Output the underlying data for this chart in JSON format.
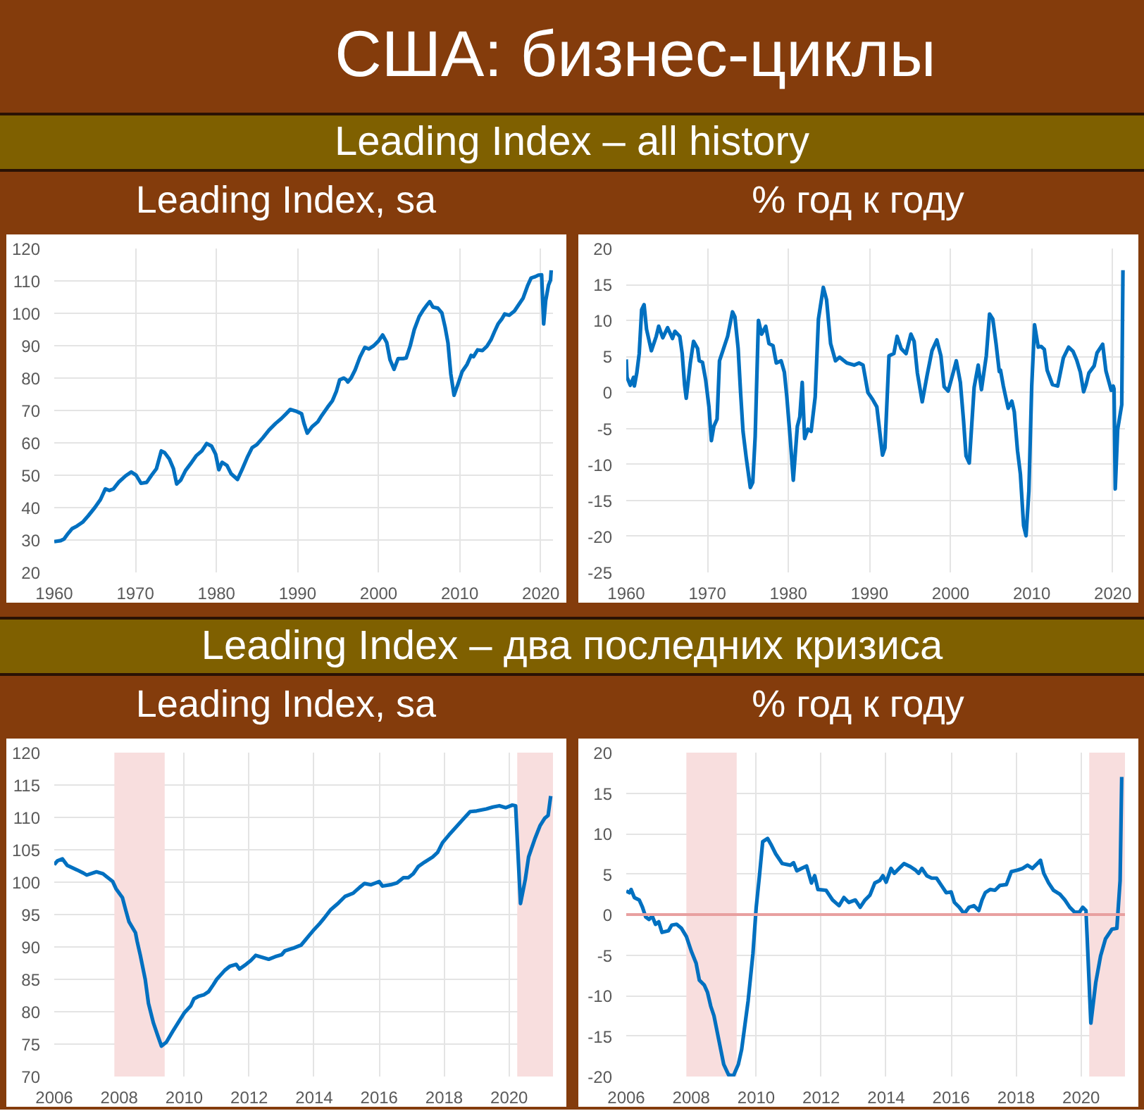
{
  "chart_data": [
    {
      "type": "line",
      "title": "Leading Index, sa",
      "annotations": [
        "США: бизнес-циклы",
        "Leading Index – all history"
      ],
      "x": [
        1960.0,
        1960.8,
        1961.2,
        1961.7,
        1962.2,
        1962.8,
        1963.5,
        1964.2,
        1965.0,
        1965.7,
        1966.3,
        1966.8,
        1967.3,
        1968.0,
        1968.8,
        1969.5,
        1970.1,
        1970.7,
        1971.4,
        1972.0,
        1972.6,
        1973.2,
        1973.6,
        1974.2,
        1974.7,
        1975.1,
        1975.6,
        1976.2,
        1976.8,
        1977.5,
        1978.2,
        1978.8,
        1979.4,
        1979.9,
        1980.3,
        1980.7,
        1981.3,
        1981.8,
        1982.6,
        1983.2,
        1983.8,
        1984.4,
        1985.0,
        1985.7,
        1986.5,
        1987.3,
        1988.0,
        1988.6,
        1989.1,
        1989.8,
        1990.5,
        1990.8,
        1991.2,
        1991.8,
        1992.5,
        1993.0,
        1993.7,
        1994.3,
        1994.8,
        1995.2,
        1995.7,
        1996.0,
        1996.2,
        1996.6,
        1997.1,
        1997.7,
        1998.3,
        1998.8,
        1999.4,
        2000.0,
        2000.5,
        2001.0,
        2001.4,
        2001.9,
        2002.4,
        2003.0,
        2003.4,
        2003.9,
        2004.4,
        2005.0,
        2005.5,
        2006.0,
        2006.3,
        2006.7,
        2007.3,
        2007.8,
        2008.2,
        2008.55,
        2008.9,
        2009.3,
        2009.85,
        2010.3,
        2010.9,
        2011.4,
        2011.7,
        2012.2,
        2012.8,
        2013.35,
        2013.85,
        2014.3,
        2014.75,
        2015.2,
        2015.55,
        2016.1,
        2016.75,
        2017.2,
        2017.8,
        2018.4,
        2018.8,
        2019.3,
        2019.7,
        2020.1,
        2020.35,
        2020.6,
        2020.95,
        2021.2,
        2021.28
      ],
      "series": [
        {
          "color": "#0070c0",
          "values": [
            29.5,
            29.8,
            30.3,
            32.0,
            33.5,
            34.3,
            35.5,
            37.5,
            40.0,
            42.5,
            45.8,
            45.3,
            45.8,
            48.0,
            49.8,
            51.0,
            50.0,
            47.5,
            47.8,
            50.0,
            52.0,
            57.5,
            57.0,
            55.0,
            52.0,
            47.3,
            48.5,
            51.5,
            53.5,
            56.0,
            57.5,
            59.8,
            59.0,
            56.5,
            51.7,
            54.0,
            53.0,
            50.5,
            48.7,
            52.0,
            55.5,
            58.5,
            59.5,
            61.5,
            64.0,
            66.0,
            67.5,
            69.0,
            70.3,
            69.8,
            69.0,
            66.0,
            63.0,
            65.0,
            66.5,
            68.5,
            71.0,
            73.0,
            76.0,
            79.5,
            80.0,
            79.5,
            78.8,
            80.0,
            82.5,
            86.5,
            89.5,
            89.0,
            90.0,
            91.5,
            93.3,
            91.0,
            85.7,
            82.7,
            86.0,
            86.0,
            86.2,
            90.0,
            95.0,
            99.0,
            101.0,
            102.7,
            103.6,
            101.9,
            101.6,
            100.1,
            95.7,
            90.9,
            81.3,
            74.7,
            78.6,
            82.0,
            84.2,
            87.0,
            86.6,
            88.7,
            88.5,
            89.8,
            91.8,
            94.4,
            96.8,
            98.3,
            99.8,
            99.4,
            100.7,
            102.4,
            104.6,
            108.7,
            110.9,
            111.3,
            111.8,
            111.9,
            96.7,
            103.9,
            108.7,
            110.3,
            113.3
          ]
        }
      ],
      "xlim": [
        1960,
        2021.5
      ],
      "xticks": [
        1960,
        1970,
        1980,
        1990,
        2000,
        2010,
        2020
      ],
      "ylim": [
        20,
        120
      ],
      "yticks": [
        20,
        30,
        40,
        50,
        60,
        70,
        80,
        90,
        100,
        110,
        120
      ],
      "grid": true
    },
    {
      "type": "line",
      "title": "% год к году",
      "x": [
        1960.0,
        1960.1,
        1960.5,
        1960.9,
        1961.0,
        1961.3,
        1961.6,
        1961.9,
        1962.2,
        1962.5,
        1963.1,
        1963.7,
        1964.0,
        1964.5,
        1965.1,
        1965.7,
        1966.0,
        1966.6,
        1966.9,
        1967.2,
        1967.4,
        1967.9,
        1968.3,
        1968.8,
        1969.0,
        1969.4,
        1969.8,
        1970.2,
        1970.5,
        1970.8,
        1971.2,
        1971.5,
        1972.0,
        1972.5,
        1973.1,
        1973.4,
        1973.8,
        1974.1,
        1974.4,
        1974.8,
        1975.3,
        1975.6,
        1975.9,
        1976.3,
        1976.7,
        1977.2,
        1977.6,
        1978.1,
        1978.5,
        1979.1,
        1979.5,
        1979.8,
        1980.2,
        1980.6,
        1981.1,
        1981.4,
        1981.7,
        1982.0,
        1982.4,
        1982.8,
        1983.3,
        1983.7,
        1984.3,
        1984.7,
        1985.2,
        1985.8,
        1986.3,
        1987.2,
        1988.1,
        1988.7,
        1989.2,
        1989.8,
        1990.4,
        1990.9,
        1991.6,
        1991.9,
        1992.4,
        1993.0,
        1993.4,
        1993.9,
        1994.5,
        1995.1,
        1995.5,
        1995.9,
        1996.5,
        1997.1,
        1997.7,
        1998.3,
        1998.8,
        1999.2,
        1999.7,
        2000.3,
        2000.7,
        2001.2,
        2001.6,
        2001.9,
        2002.3,
        2002.9,
        2003.4,
        2003.8,
        2004.4,
        2004.8,
        2005.2,
        2005.6,
        2006.0,
        2006.15,
        2006.5,
        2006.9,
        2007.1,
        2007.55,
        2007.85,
        2008.25,
        2008.6,
        2009.0,
        2009.3,
        2009.65,
        2010.0,
        2010.35,
        2010.8,
        2011.15,
        2011.55,
        2011.9,
        2012.55,
        2013.2,
        2013.9,
        2014.55,
        2015.1,
        2015.55,
        2016.0,
        2016.4,
        2016.7,
        2017.05,
        2017.7,
        2018.05,
        2018.75,
        2019.15,
        2019.8,
        2020.05,
        2020.15,
        2020.3,
        2020.6,
        2021.1,
        2021.25
      ],
      "series": [
        {
          "color": "#0070c0",
          "values": [
            4.6,
            2.1,
            1.0,
            2.1,
            0.9,
            2.7,
            5.4,
            11.5,
            12.2,
            8.8,
            5.8,
            7.8,
            9.2,
            7.6,
            9.0,
            7.5,
            8.5,
            7.8,
            5.4,
            1.0,
            -0.8,
            4.1,
            7.1,
            6.1,
            4.4,
            4.2,
            1.7,
            -2.0,
            -6.7,
            -4.7,
            -3.7,
            4.4,
            6.1,
            7.8,
            11.2,
            10.5,
            6.1,
            0.0,
            -5.4,
            -9.1,
            -13.2,
            -12.5,
            -6.1,
            10.0,
            8.1,
            9.2,
            6.8,
            6.5,
            4.1,
            4.4,
            2.8,
            -0.6,
            -6.1,
            -12.2,
            -4.7,
            -3.4,
            1.4,
            -6.4,
            -5.1,
            -5.4,
            -0.6,
            10.2,
            14.6,
            12.9,
            6.8,
            4.4,
            4.9,
            4.1,
            3.8,
            4.1,
            3.8,
            0.0,
            -1.0,
            -2.0,
            -8.7,
            -7.7,
            5.1,
            5.4,
            7.8,
            6.1,
            5.4,
            8.1,
            7.1,
            2.7,
            -1.3,
            2.4,
            5.8,
            7.3,
            5.1,
            0.8,
            0.2,
            2.7,
            4.4,
            1.4,
            -4.0,
            -8.8,
            -9.8,
            0.7,
            3.8,
            0.4,
            5.1,
            10.9,
            10.2,
            6.8,
            2.9,
            3.1,
            0.9,
            -1.2,
            -2.2,
            -1.2,
            -2.7,
            -8.1,
            -11.3,
            -18.5,
            -19.9,
            -13.7,
            0.9,
            9.4,
            6.3,
            6.4,
            6.0,
            3.1,
            1.1,
            0.9,
            4.8,
            6.3,
            5.7,
            4.5,
            2.8,
            0.1,
            1.1,
            2.7,
            3.7,
            5.5,
            6.7,
            3.0,
            0.3,
            0.9,
            0.5,
            -13.4,
            -5.1,
            -1.7,
            17.0
          ]
        }
      ],
      "xlim": [
        1960,
        2021.5
      ],
      "xticks": [
        1960,
        1970,
        1980,
        1990,
        2000,
        2010,
        2020
      ],
      "ylim": [
        -25,
        20
      ],
      "yticks": [
        -25,
        -20,
        -15,
        -10,
        -5,
        0,
        5,
        10,
        15,
        20
      ],
      "grid": true
    },
    {
      "type": "line",
      "title": "Leading Index, sa",
      "annotations": [
        "Leading Index – два последних кризиса"
      ],
      "x": [
        2006.0,
        2006.1,
        2006.25,
        2006.4,
        2006.7,
        2006.9,
        2007.0,
        2007.3,
        2007.5,
        2007.6,
        2007.8,
        2007.9,
        2008.1,
        2008.2,
        2008.3,
        2008.5,
        2008.55,
        2008.65,
        2008.8,
        2008.9,
        2009.05,
        2009.2,
        2009.3,
        2009.45,
        2009.65,
        2009.85,
        2010.0,
        2010.2,
        2010.3,
        2010.45,
        2010.6,
        2010.75,
        2010.9,
        2011.0,
        2011.25,
        2011.4,
        2011.6,
        2011.7,
        2011.9,
        2012.05,
        2012.2,
        2012.4,
        2012.6,
        2012.8,
        2013.0,
        2013.1,
        2013.35,
        2013.6,
        2013.7,
        2013.85,
        2014.0,
        2014.15,
        2014.3,
        2014.5,
        2014.75,
        2014.95,
        2015.2,
        2015.4,
        2015.55,
        2015.75,
        2016.0,
        2016.1,
        2016.35,
        2016.55,
        2016.75,
        2016.9,
        2017.05,
        2017.2,
        2017.4,
        2017.65,
        2017.8,
        2017.95,
        2018.15,
        2018.4,
        2018.6,
        2018.8,
        2019.0,
        2019.3,
        2019.5,
        2019.7,
        2019.9,
        2020.1,
        2020.2,
        2020.35,
        2020.5,
        2020.6,
        2020.8,
        2020.95,
        2021.1,
        2021.2,
        2021.28
      ],
      "series": [
        {
          "color": "#0070c0",
          "values": [
            102.7,
            103.3,
            103.6,
            102.6,
            101.9,
            101.4,
            101.1,
            101.6,
            101.3,
            100.9,
            100.1,
            99.0,
            97.6,
            95.7,
            93.9,
            92.2,
            90.9,
            88.7,
            85.0,
            81.3,
            78.3,
            76.1,
            74.7,
            75.3,
            77.0,
            78.6,
            79.8,
            80.9,
            82.0,
            82.4,
            82.6,
            83.1,
            84.2,
            85.0,
            86.4,
            87.0,
            87.3,
            86.6,
            87.3,
            87.9,
            88.7,
            88.4,
            88.1,
            88.5,
            88.8,
            89.4,
            89.8,
            90.3,
            90.9,
            91.8,
            92.7,
            93.5,
            94.4,
            95.7,
            96.8,
            97.8,
            98.3,
            99.2,
            99.8,
            99.6,
            100.1,
            99.4,
            99.6,
            99.9,
            100.7,
            100.7,
            101.3,
            102.4,
            103.1,
            103.9,
            104.6,
            106.1,
            107.3,
            108.7,
            109.8,
            110.9,
            111.0,
            111.3,
            111.6,
            111.8,
            111.5,
            111.9,
            111.8,
            96.7,
            100.5,
            103.9,
            106.8,
            108.7,
            109.9,
            110.3,
            113.3
          ]
        }
      ],
      "xlim": [
        2006,
        2021.35
      ],
      "xticks": [
        2006,
        2008,
        2010,
        2012,
        2014,
        2016,
        2018,
        2020
      ],
      "ylim": [
        70,
        120
      ],
      "yticks": [
        70,
        75,
        80,
        85,
        90,
        95,
        100,
        105,
        110,
        115,
        120
      ],
      "bands": [
        {
          "axis": "x",
          "from": 2007.85,
          "to": 2009.4,
          "color": "#f8dede"
        },
        {
          "axis": "x",
          "from": 2020.25,
          "to": 2021.35,
          "color": "#f8dede"
        }
      ],
      "grid": true
    },
    {
      "type": "line",
      "title": "% год к году",
      "x": [
        2006.0,
        2006.1,
        2006.15,
        2006.25,
        2006.4,
        2006.5,
        2006.6,
        2006.7,
        2006.8,
        2006.9,
        2007.0,
        2007.1,
        2007.3,
        2007.4,
        2007.55,
        2007.7,
        2007.85,
        2008.0,
        2008.15,
        2008.25,
        2008.4,
        2008.5,
        2008.6,
        2008.7,
        2008.85,
        2009.0,
        2009.15,
        2009.3,
        2009.45,
        2009.55,
        2009.65,
        2009.75,
        2009.9,
        2010.0,
        2010.1,
        2010.2,
        2010.35,
        2010.45,
        2010.6,
        2010.8,
        2011.05,
        2011.15,
        2011.25,
        2011.4,
        2011.55,
        2011.7,
        2011.8,
        2011.9,
        2012.15,
        2012.35,
        2012.55,
        2012.7,
        2012.85,
        2013.05,
        2013.2,
        2013.35,
        2013.5,
        2013.65,
        2013.8,
        2013.9,
        2014.0,
        2014.15,
        2014.25,
        2014.4,
        2014.55,
        2014.75,
        2014.9,
        2015.0,
        2015.1,
        2015.25,
        2015.4,
        2015.55,
        2015.7,
        2015.85,
        2016.0,
        2016.1,
        2016.25,
        2016.4,
        2016.55,
        2016.7,
        2016.85,
        2016.95,
        2017.05,
        2017.2,
        2017.35,
        2017.5,
        2017.7,
        2017.85,
        2018.05,
        2018.2,
        2018.35,
        2018.5,
        2018.65,
        2018.75,
        2018.85,
        2019.0,
        2019.15,
        2019.35,
        2019.5,
        2019.65,
        2019.8,
        2019.95,
        2020.05,
        2020.15,
        2020.3,
        2020.45,
        2020.6,
        2020.75,
        2020.95,
        2021.1,
        2021.2,
        2021.25
      ],
      "series": [
        {
          "color": "#0070c0",
          "values": [
            2.9,
            2.7,
            3.1,
            2.1,
            1.8,
            0.9,
            -0.3,
            -0.6,
            -0.2,
            -1.2,
            -0.9,
            -2.2,
            -2.0,
            -1.3,
            -1.2,
            -1.7,
            -2.7,
            -4.5,
            -6.0,
            -8.1,
            -8.7,
            -9.6,
            -11.3,
            -12.5,
            -15.5,
            -18.5,
            -19.8,
            -19.9,
            -18.5,
            -16.7,
            -13.7,
            -10.7,
            -4.8,
            0.9,
            4.8,
            9.0,
            9.4,
            8.7,
            7.5,
            6.3,
            6.1,
            6.4,
            5.4,
            5.7,
            6.0,
            3.9,
            4.8,
            3.1,
            3.0,
            1.8,
            1.1,
            2.1,
            1.5,
            1.8,
            0.9,
            1.8,
            2.4,
            3.9,
            4.2,
            4.8,
            4.0,
            5.7,
            5.1,
            5.7,
            6.3,
            5.9,
            5.5,
            5.1,
            5.7,
            4.8,
            4.5,
            4.5,
            3.6,
            2.7,
            2.8,
            1.5,
            0.9,
            0.1,
            0.9,
            1.1,
            0.5,
            1.8,
            2.7,
            3.1,
            3.0,
            3.6,
            3.7,
            5.3,
            5.5,
            5.7,
            6.1,
            5.7,
            6.3,
            6.7,
            5.1,
            3.9,
            3.0,
            2.5,
            1.8,
            0.9,
            0.3,
            0.3,
            0.9,
            0.5,
            -13.4,
            -8.4,
            -5.1,
            -3.0,
            -1.8,
            -1.7,
            4.2,
            17.0
          ]
        }
      ],
      "xlim": [
        2006,
        2021.35
      ],
      "xticks": [
        2006,
        2008,
        2010,
        2012,
        2014,
        2016,
        2018,
        2020
      ],
      "ylim": [
        -20,
        20
      ],
      "yticks": [
        -20,
        -15,
        -10,
        -5,
        0,
        5,
        10,
        15,
        20
      ],
      "bands": [
        {
          "axis": "x",
          "from": 2007.85,
          "to": 2009.4,
          "color": "#f8dede"
        },
        {
          "axis": "x",
          "from": 2020.25,
          "to": 2021.35,
          "color": "#f8dede"
        }
      ],
      "ref_lines": [
        {
          "axis": "y",
          "value": 0,
          "color": "#e8a0a0"
        }
      ],
      "grid": true
    }
  ]
}
